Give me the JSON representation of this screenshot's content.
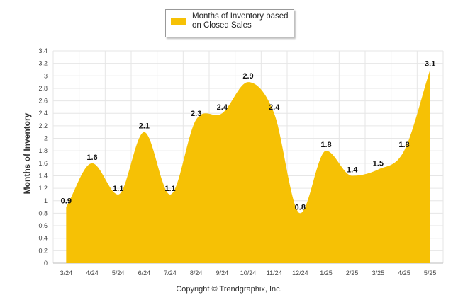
{
  "legend": {
    "label": "Months of Inventory based on Closed Sales",
    "color": "#F6C105"
  },
  "copyright": "Copyright © Trendgraphix, Inc.",
  "chart_data": {
    "type": "area",
    "ylabel": "Months of Inventory",
    "xlabel": "",
    "categories": [
      "3/24",
      "4/24",
      "5/24",
      "6/24",
      "7/24",
      "8/24",
      "9/24",
      "10/24",
      "11/24",
      "12/24",
      "1/25",
      "2/25",
      "3/25",
      "4/25",
      "5/25"
    ],
    "series": [
      {
        "name": "Months of Inventory based on Closed Sales",
        "values": [
          0.9,
          1.6,
          1.1,
          2.1,
          1.1,
          2.3,
          2.4,
          2.9,
          2.4,
          0.8,
          1.8,
          1.4,
          1.5,
          1.8,
          3.1
        ],
        "labels": [
          "0.9",
          "1.6",
          "1.1",
          "2.1",
          "1.1",
          "2.3",
          "2.4",
          "2.9",
          "2.4",
          "0.8",
          "1.8",
          "1.4",
          "1.5",
          "1.8",
          "3.1"
        ]
      }
    ],
    "ylim": [
      0,
      3.4
    ],
    "yticks": [
      "0",
      "0.2",
      "0.4",
      "0.6",
      "0.8",
      "1",
      "1.2",
      "1.4",
      "1.6",
      "1.8",
      "2",
      "2.2",
      "2.4",
      "2.6",
      "2.8",
      "3",
      "3.2",
      "3.4"
    ],
    "grid": true,
    "legend_position": "top-center",
    "area_color": "#F6C105",
    "grid_color": "#E6E6E6"
  }
}
